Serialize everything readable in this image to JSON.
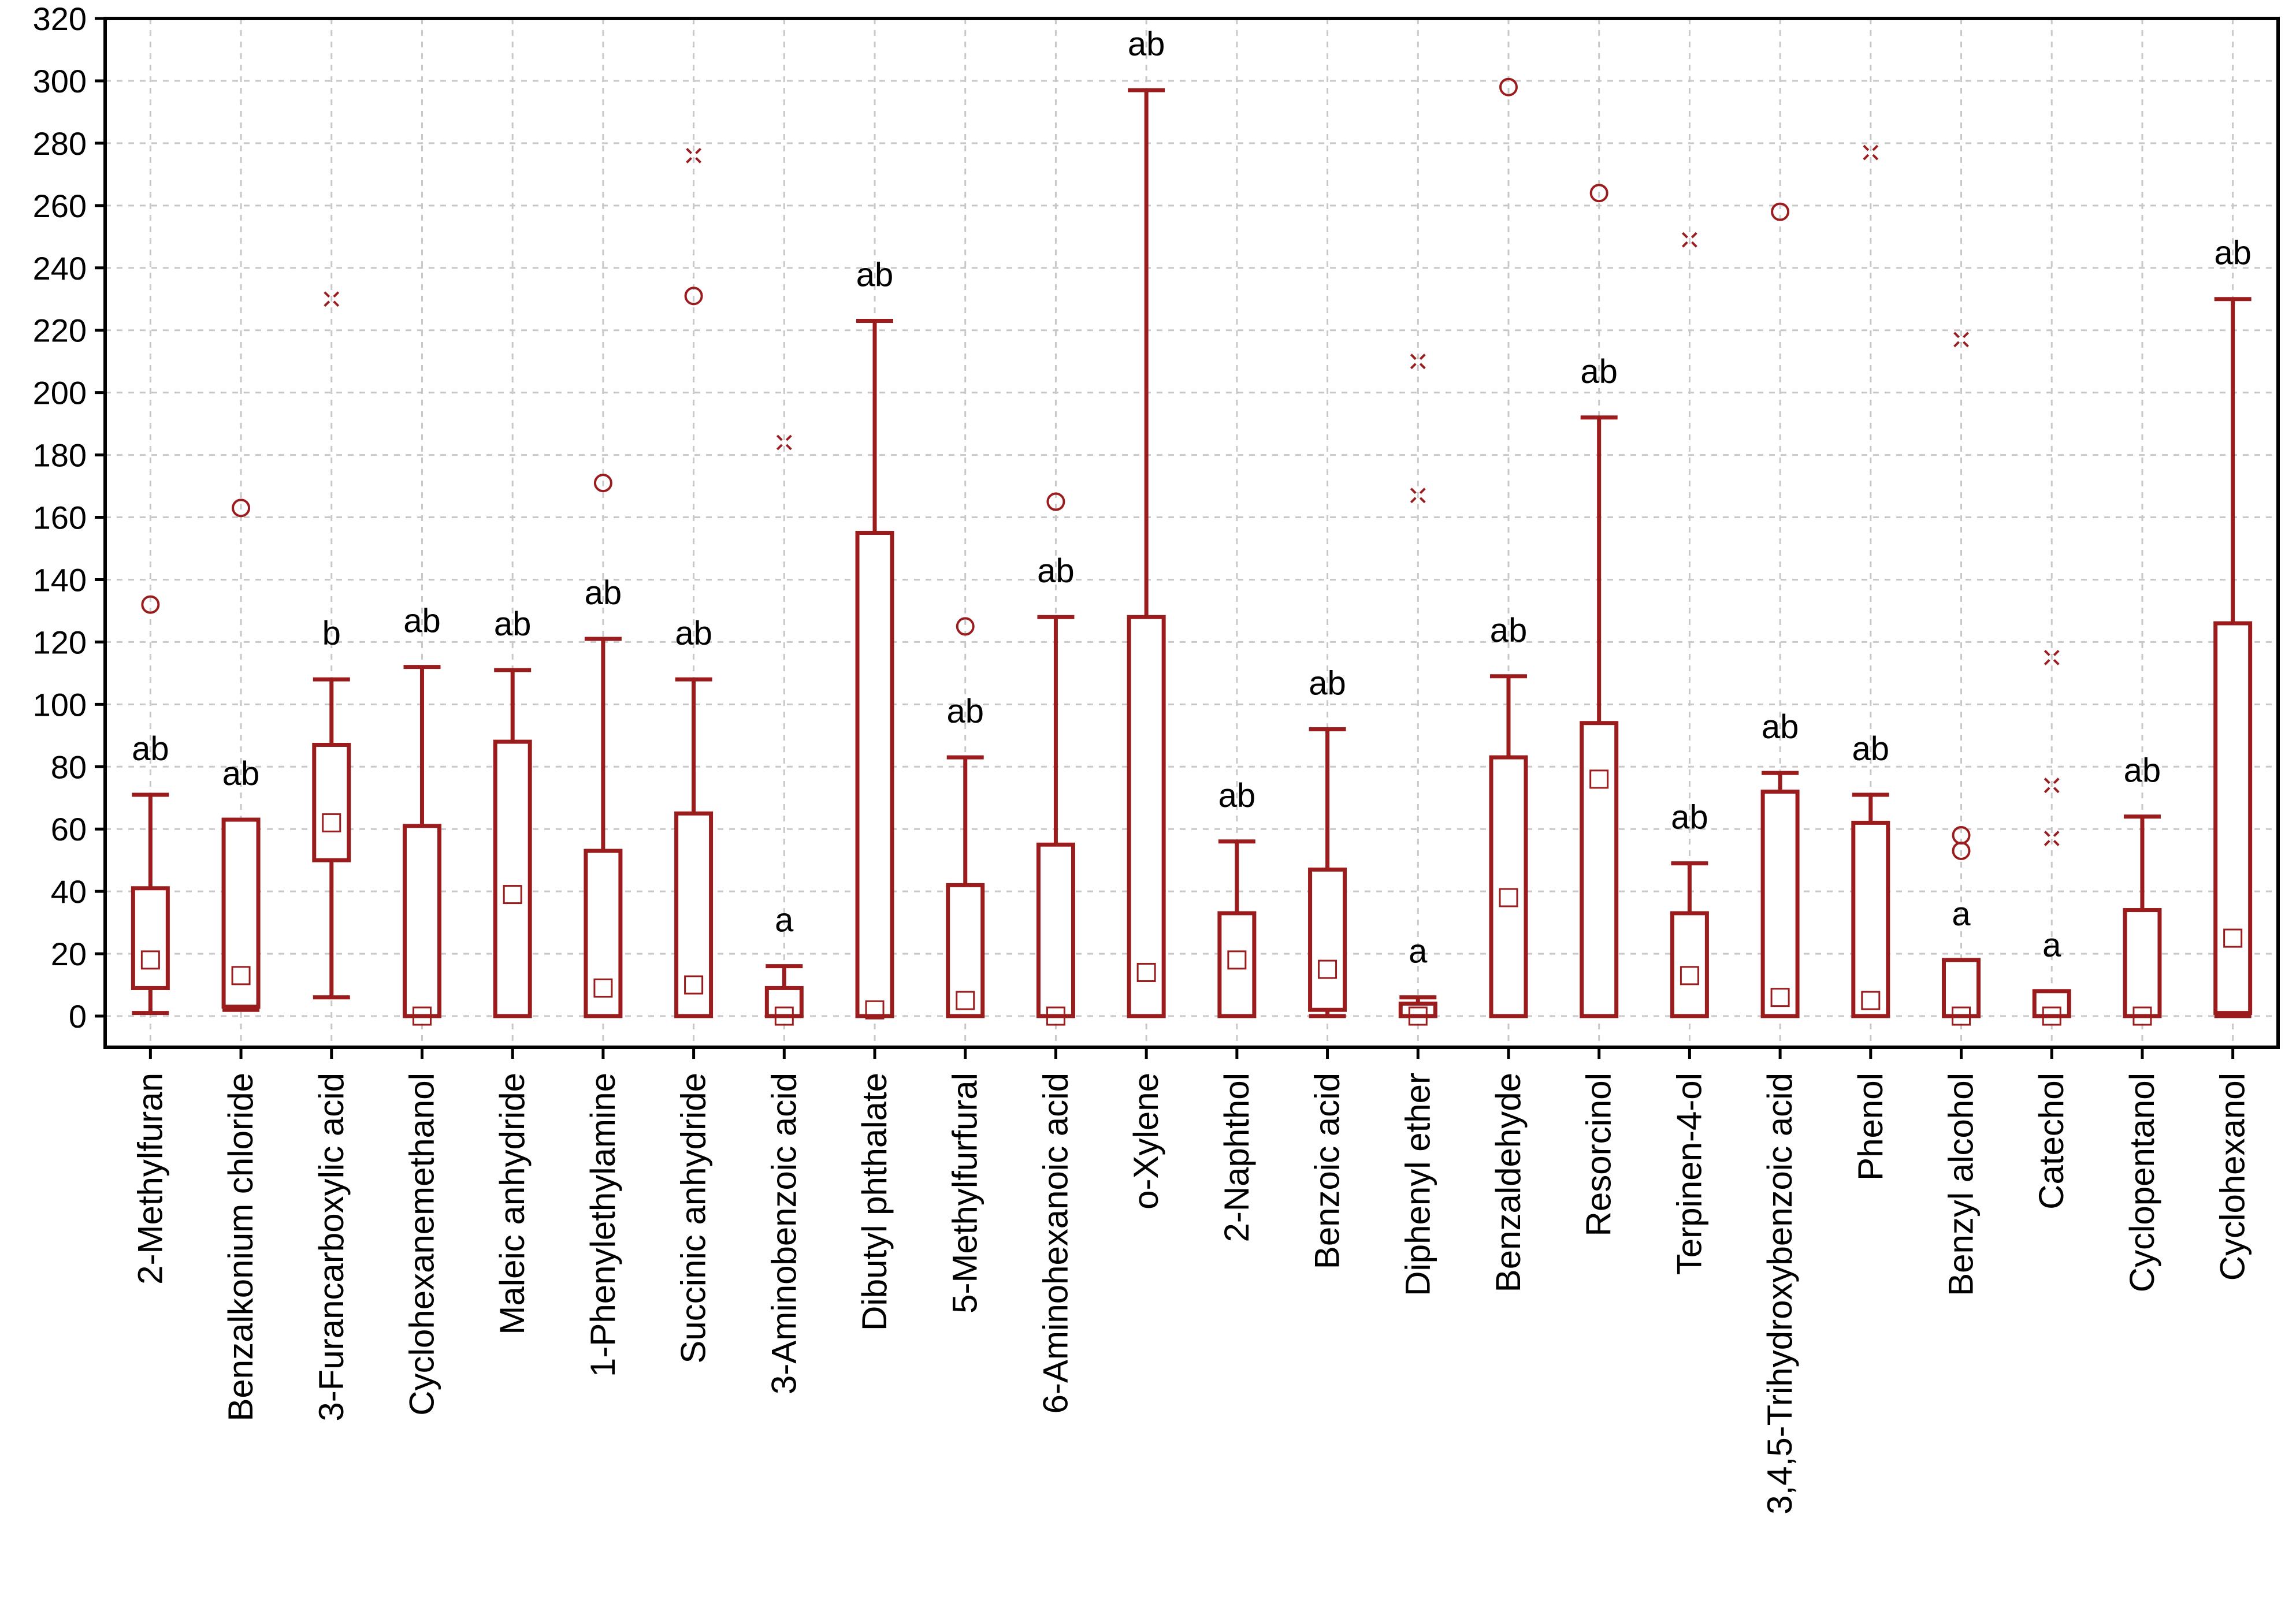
{
  "chart_data": {
    "type": "boxplot",
    "ylim": [
      -10,
      320
    ],
    "yticks": [
      0,
      20,
      40,
      60,
      80,
      100,
      120,
      140,
      160,
      180,
      200,
      220,
      240,
      260,
      280,
      300,
      320
    ],
    "grid": true,
    "colors": {
      "box": "#9b1c1c",
      "axis": "#000000",
      "grid": "#c8c8c8"
    },
    "categories": [
      {
        "name": "2-Methylfuran",
        "median": 18,
        "q1": 9,
        "q3": 41,
        "min": 1,
        "max": 71,
        "outliers": [
          132
        ],
        "extremes": [],
        "group": "ab"
      },
      {
        "name": "Benzalkonium chloride",
        "median": 13,
        "q1": 3,
        "q3": 63,
        "min": 2,
        "max": 63,
        "outliers": [
          163
        ],
        "extremes": [],
        "group": "ab"
      },
      {
        "name": "3-Furancarboxylic acid",
        "median": 62,
        "q1": 50,
        "q3": 87,
        "min": 6,
        "max": 108,
        "outliers": [],
        "extremes": [
          230
        ],
        "group": "b"
      },
      {
        "name": "Cyclohexanemethanol",
        "median": 0,
        "q1": 0,
        "q3": 61,
        "min": 0,
        "max": 112,
        "outliers": [],
        "extremes": [],
        "group": "ab"
      },
      {
        "name": "Maleic anhydride",
        "median": 39,
        "q1": 0,
        "q3": 88,
        "min": 0,
        "max": 111,
        "outliers": [],
        "extremes": [],
        "group": "ab"
      },
      {
        "name": "1-Phenylethylamine",
        "median": 9,
        "q1": 0,
        "q3": 53,
        "min": 0,
        "max": 121,
        "outliers": [
          171
        ],
        "extremes": [],
        "group": "ab"
      },
      {
        "name": "Succinic anhydride",
        "median": 10,
        "q1": 0,
        "q3": 65,
        "min": 0,
        "max": 108,
        "outliers": [
          231
        ],
        "extremes": [
          276
        ],
        "group": "ab"
      },
      {
        "name": "3-Aminobenzoic acid",
        "median": 0,
        "q1": 0,
        "q3": 9,
        "min": 0,
        "max": 16,
        "outliers": [],
        "extremes": [
          184
        ],
        "group": "a"
      },
      {
        "name": "Dibutyl phthalate",
        "median": 2,
        "q1": 0,
        "q3": 155,
        "min": 0,
        "max": 223,
        "outliers": [],
        "extremes": [],
        "group": "ab"
      },
      {
        "name": "5-Methylfurfural",
        "median": 5,
        "q1": 0,
        "q3": 42,
        "min": 0,
        "max": 83,
        "outliers": [
          125
        ],
        "extremes": [],
        "group": "ab"
      },
      {
        "name": "6-Aminohexanoic acid",
        "median": 0,
        "q1": 0,
        "q3": 55,
        "min": 0,
        "max": 128,
        "outliers": [
          165
        ],
        "extremes": [],
        "group": "ab"
      },
      {
        "name": "o-Xylene",
        "median": 14,
        "q1": 0,
        "q3": 128,
        "min": 0,
        "max": 297,
        "outliers": [],
        "extremes": [],
        "group": "ab"
      },
      {
        "name": "2-Naphthol",
        "median": 18,
        "q1": 0,
        "q3": 33,
        "min": 0,
        "max": 56,
        "outliers": [],
        "extremes": [],
        "group": "ab"
      },
      {
        "name": "Benzoic acid",
        "median": 15,
        "q1": 2,
        "q3": 47,
        "min": 0,
        "max": 92,
        "outliers": [],
        "extremes": [],
        "group": "ab"
      },
      {
        "name": "Diphenyl ether",
        "median": 0,
        "q1": 0,
        "q3": 4,
        "min": 0,
        "max": 6,
        "outliers": [],
        "extremes": [
          167,
          210
        ],
        "group": "a"
      },
      {
        "name": "Benzaldehyde",
        "median": 38,
        "q1": 0,
        "q3": 83,
        "min": 0,
        "max": 109,
        "outliers": [
          298
        ],
        "extremes": [],
        "group": "ab"
      },
      {
        "name": "Resorcinol",
        "median": 76,
        "q1": 0,
        "q3": 94,
        "min": 0,
        "max": 192,
        "outliers": [
          264
        ],
        "extremes": [],
        "group": "ab"
      },
      {
        "name": "Terpinen-4-ol",
        "median": 13,
        "q1": 0,
        "q3": 33,
        "min": 0,
        "max": 49,
        "outliers": [],
        "extremes": [
          249
        ],
        "group": "ab"
      },
      {
        "name": "3,4,5-Trihydroxybenzoic acid",
        "median": 6,
        "q1": 0,
        "q3": 72,
        "min": 0,
        "max": 78,
        "outliers": [
          258
        ],
        "extremes": [],
        "group": "ab"
      },
      {
        "name": "Phenol",
        "median": 5,
        "q1": 0,
        "q3": 62,
        "min": 0,
        "max": 71,
        "outliers": [],
        "extremes": [
          277
        ],
        "group": "ab"
      },
      {
        "name": "Benzyl alcohol",
        "median": 0,
        "q1": 0,
        "q3": 18,
        "min": 0,
        "max": 18,
        "outliers": [
          53,
          58
        ],
        "extremes": [
          217
        ],
        "group": "a"
      },
      {
        "name": "Catechol",
        "median": 0,
        "q1": 0,
        "q3": 8,
        "min": 0,
        "max": 8,
        "outliers": [],
        "extremes": [
          57,
          74,
          115
        ],
        "group": "a"
      },
      {
        "name": "Cyclopentanol",
        "median": 0,
        "q1": 0,
        "q3": 34,
        "min": 0,
        "max": 64,
        "outliers": [],
        "extremes": [],
        "group": "ab"
      },
      {
        "name": "Cyclohexanol",
        "median": 25,
        "q1": 1,
        "q3": 126,
        "min": 0,
        "max": 230,
        "outliers": [],
        "extremes": [],
        "group": "ab"
      }
    ]
  }
}
